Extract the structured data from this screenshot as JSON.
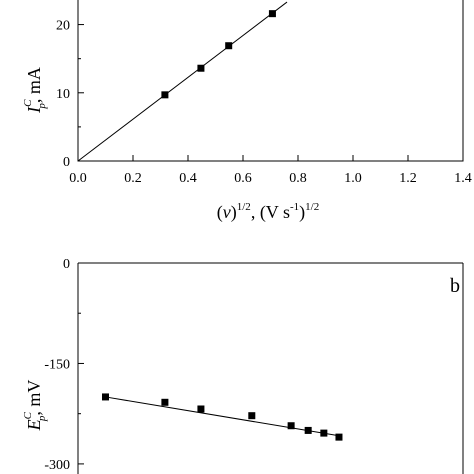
{
  "chart_data": [
    {
      "type": "scatter",
      "panel_label": "",
      "xlabel": {
        "open": "(",
        "var": "v",
        "close": ")",
        "sup1": "1/2",
        "mid": ", (V s",
        "sup2": "-1",
        "end": ")",
        "sup3": "1/2"
      },
      "ylabel": {
        "sym": "I",
        "sup": "C",
        "sub": "p",
        "unit": ", mA"
      },
      "xlim": [
        0.0,
        1.4
      ],
      "ylim": [
        0,
        28
      ],
      "x_ticks": [
        "0.0",
        "0.2",
        "0.4",
        "0.6",
        "0.8",
        "1.0",
        "1.2",
        "1.4"
      ],
      "y_ticks": [
        "0",
        "10",
        "20"
      ],
      "x_tick_values": [
        0.0,
        0.2,
        0.4,
        0.6,
        0.8,
        1.0,
        1.2,
        1.4
      ],
      "y_tick_values": [
        0,
        10,
        20
      ],
      "points": [
        {
          "x": 0.316,
          "y": 9.7
        },
        {
          "x": 0.447,
          "y": 13.6
        },
        {
          "x": 0.548,
          "y": 16.9
        },
        {
          "x": 0.707,
          "y": 21.6
        }
      ],
      "fit_line": {
        "x": [
          0.0,
          0.76
        ],
        "y": [
          0,
          23.3
        ]
      }
    },
    {
      "type": "scatter",
      "panel_label": "b",
      "xlabel": "",
      "ylabel": {
        "sym": "E",
        "sup": "C",
        "sub": "p",
        "unit": ", mV"
      },
      "xlim": [
        0.0,
        1.4
      ],
      "ylim": [
        -330,
        0
      ],
      "y_ticks": [
        "0",
        "-150",
        "-300"
      ],
      "y_tick_values": [
        0,
        -150,
        -300
      ],
      "points": [
        {
          "x": 0.1,
          "y": -200
        },
        {
          "x": 0.316,
          "y": -208
        },
        {
          "x": 0.447,
          "y": -218
        },
        {
          "x": 0.632,
          "y": -228
        },
        {
          "x": 0.775,
          "y": -243
        },
        {
          "x": 0.837,
          "y": -250
        },
        {
          "x": 0.894,
          "y": -254
        },
        {
          "x": 0.949,
          "y": -260
        }
      ],
      "fit_line": {
        "x": [
          0.1,
          0.949
        ],
        "y": [
          -200,
          -258
        ]
      }
    }
  ]
}
